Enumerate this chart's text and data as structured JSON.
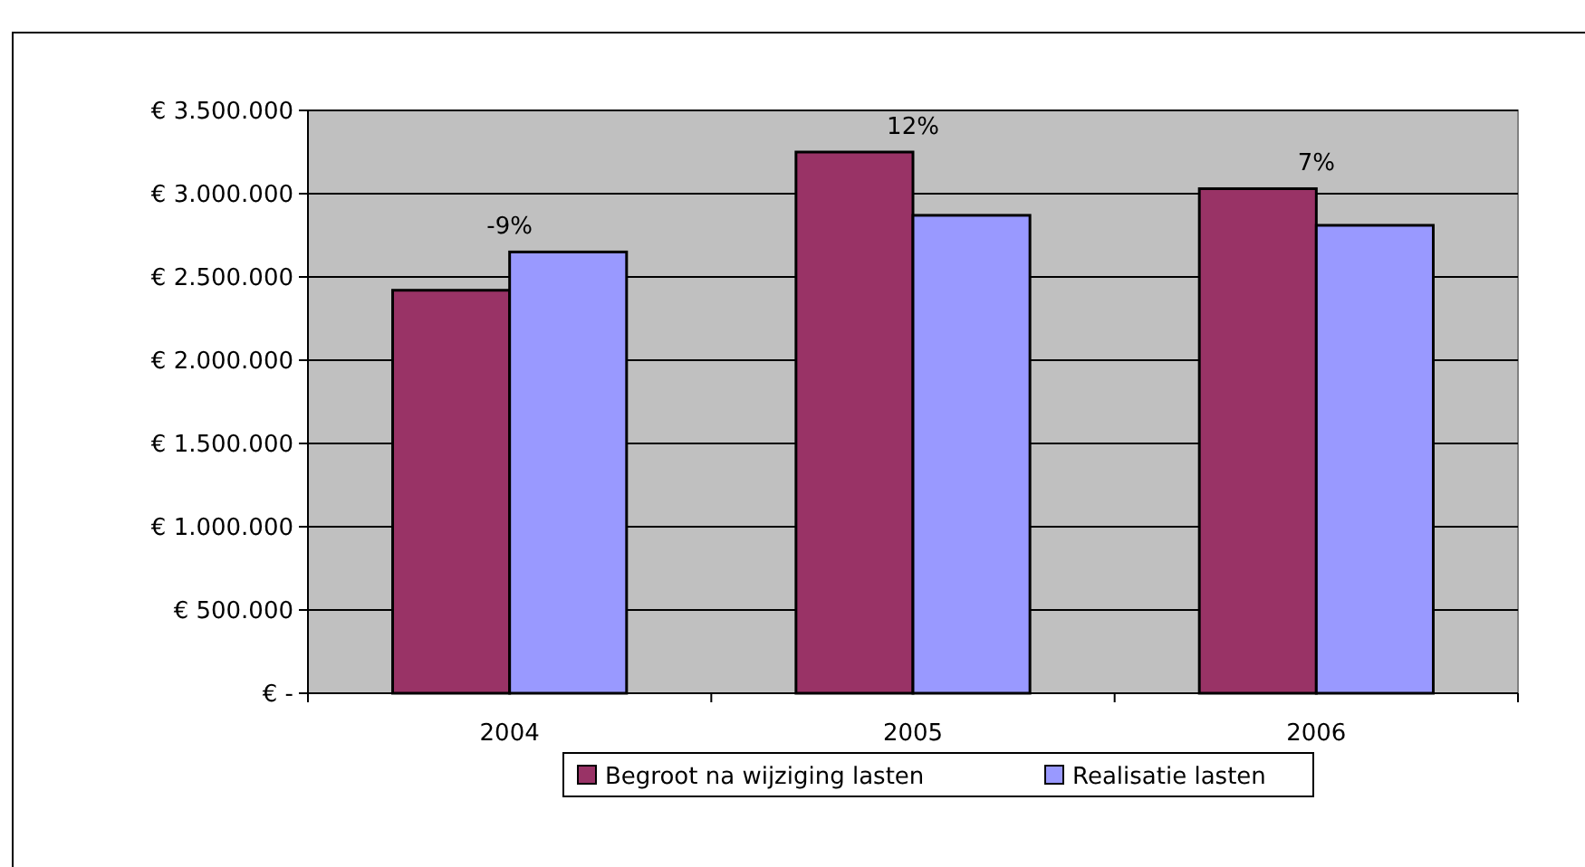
{
  "chart_data": {
    "type": "bar",
    "categories": [
      "2004",
      "2005",
      "2006"
    ],
    "series": [
      {
        "name": "Begroot na wijziging lasten",
        "color": "#993366",
        "values": [
          2420000,
          3250000,
          3030000
        ]
      },
      {
        "name": "Realisatie lasten",
        "color": "#9999ff",
        "values": [
          2650000,
          2870000,
          2810000
        ]
      }
    ],
    "ylim": [
      0,
      3500000
    ],
    "yticks": [
      {
        "value": 0,
        "label": "€ -"
      },
      {
        "value": 500000,
        "label": "€ 500.000"
      },
      {
        "value": 1000000,
        "label": "€ 1.000.000"
      },
      {
        "value": 1500000,
        "label": "€ 1.500.000"
      },
      {
        "value": 2000000,
        "label": "€ 2.000.000"
      },
      {
        "value": 2500000,
        "label": "€ 2.500.000"
      },
      {
        "value": 3000000,
        "label": "€ 3.000.000"
      },
      {
        "value": 3500000,
        "label": "€ 3.500.000"
      }
    ],
    "annotations": [
      {
        "text": "-9%",
        "x": "2004",
        "y": 2650000
      },
      {
        "text": "12%",
        "x": "2005",
        "y": 3250000
      },
      {
        "text": "7%",
        "x": "2006",
        "y": 3030000
      }
    ],
    "grid": "y",
    "legend": "bottom"
  }
}
